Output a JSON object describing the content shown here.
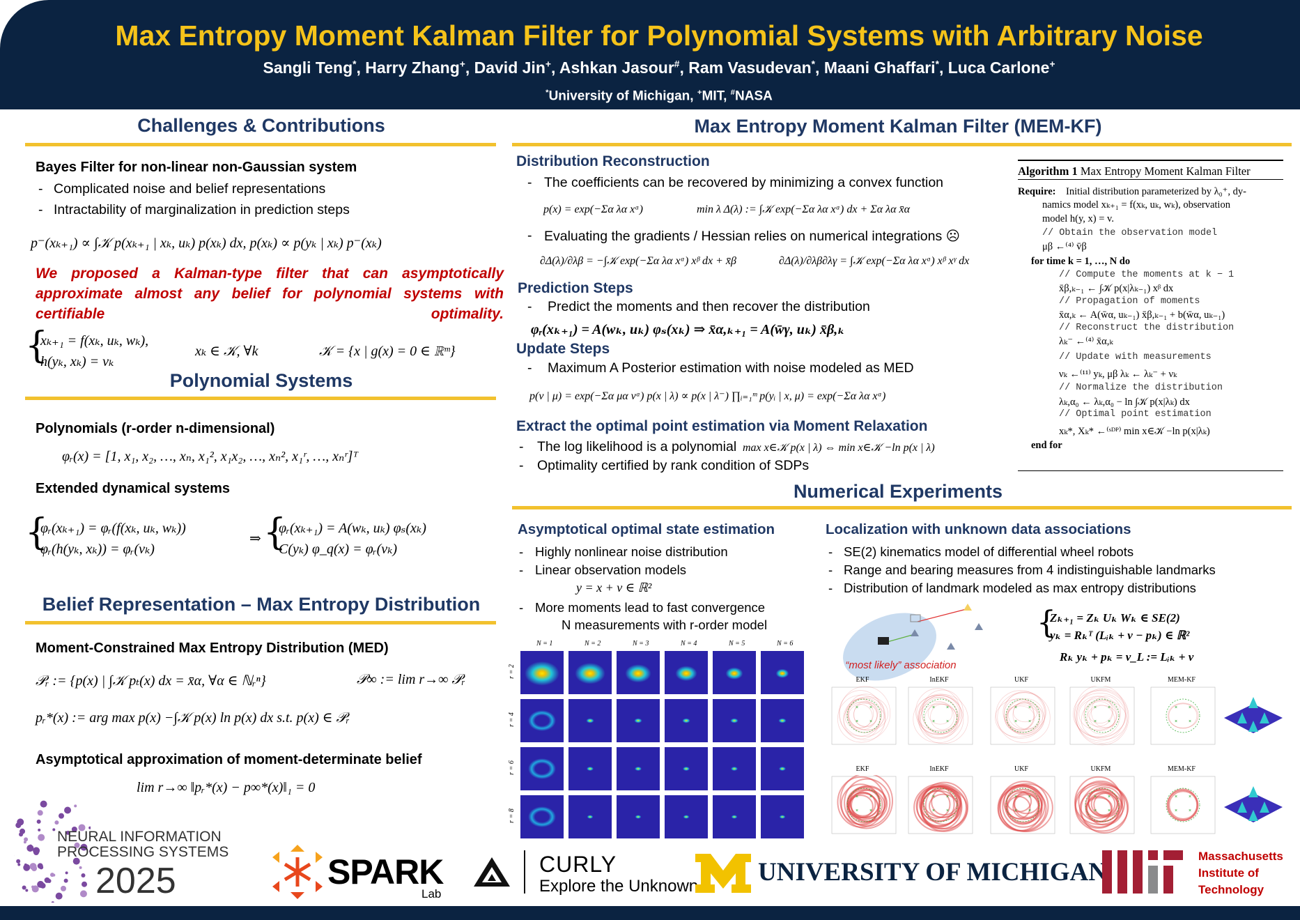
{
  "header": {
    "title": "Max Entropy Moment Kalman Filter for Polynomial Systems with Arbitrary Noise",
    "authors": [
      {
        "name": "Sangli Teng",
        "mark": "*"
      },
      {
        "name": ", Harry Zhang",
        "mark": "+"
      },
      {
        "name": ", David Jin",
        "mark": "+"
      },
      {
        "name": ", Ashkan Jasour",
        "mark": "#"
      },
      {
        "name": ", Ram Vasudevan",
        "mark": "*"
      },
      {
        "name": ", Maani Ghaffari",
        "mark": "*"
      },
      {
        "name": ", Luca Carlone",
        "mark": "+"
      }
    ],
    "affiliations": [
      {
        "mark": "*",
        "name": "University of Michigan, "
      },
      {
        "mark": "+",
        "name": "MIT, "
      },
      {
        "mark": "#",
        "name": "NASA"
      }
    ]
  },
  "challenges": {
    "heading": "Challenges & Contributions",
    "subheading": "Bayes Filter for non-linear non-Gaussian system",
    "bullets": [
      "Complicated noise and belief representations",
      "Intractability of marginalization in prediction steps"
    ],
    "equation": "p⁻(xₖ₊₁) ∝ ∫𝒦 p(xₖ₊₁ | xₖ, uₖ) p(xₖ) dx,      p(xₖ) ∝ p(yₖ | xₖ) p⁻(xₖ)",
    "highlight": "We proposed a Kalman-type filter that can asymptotically approximate almost any belief for polynomial systems with certifiable optimality.",
    "system": [
      "xₖ₊₁ = f(xₖ, uₖ, wₖ),",
      "h(yₖ, xₖ) = vₖ"
    ],
    "constraint": "xₖ ∈ 𝒦,    ∀k",
    "set": "𝒦 = {x | g(x) = 0 ∈ ℝᵐ}"
  },
  "polynomial": {
    "heading": "Polynomial Systems",
    "subheading": "Polynomials (r-order n-dimensional)",
    "equation": "φᵣ(x) = [1, x₁, x₂, …, xₙ, x₁², x₁x₂, …, xₙ², x₁ʳ, …, xₙʳ]ᵀ",
    "subheading2": "Extended dynamical systems",
    "system_left": [
      "φᵣ(xₖ₊₁) = φᵣ(f(xₖ, uₖ, wₖ))",
      "φᵣ(h(yₖ, xₖ)) = φᵣ(vₖ)"
    ],
    "implies": "⇒",
    "system_right": [
      "φᵣ(xₖ₊₁) = A(wₖ, uₖ) φₛ(xₖ)",
      "C(yₖ) φ_q(x) = φᵣ(vₖ)"
    ]
  },
  "belief": {
    "heading": "Belief Representation – Max Entropy Distribution",
    "subheading": "Moment-Constrained Max Entropy Distribution (MED)",
    "set_def": "𝒫ᵣ := {p(x) | ∫𝒦 pₜ(x) dx = x̄α, ∀α ∈ ℕᵣⁿ}",
    "limit_def": "𝒫∞ := lim r→∞ 𝒫ᵣ",
    "med_def": "pᵣ*(x) := arg max p(x)   −∫𝒦 p(x) ln p(x) dx     s.t.    p(x) ∈ 𝒫ᵣ",
    "subheading2": "Asymptotical approximation of moment-determinate belief",
    "convergence": "lim r→∞ ‖pᵣ*(x) − p∞*(x)‖₁ = 0"
  },
  "memkf": {
    "heading": "Max Entropy Moment Kalman Filter (MEM-KF)",
    "reconstruction": {
      "heading": "Distribution Reconstruction",
      "bullet1": "The coefficients can be recovered by minimizing a convex function",
      "eq1": "p(x) = exp(−Σα λα xᵅ)",
      "eq2": "min λ  Δ(λ) := ∫𝒦 exp(−Σα λα xᵅ) dx + Σα λα x̄α",
      "bullet2": "Evaluating the gradients / Hessian relies on numerical integrations ☹",
      "eq3": "∂Δ(λ)/∂λβ = −∫𝒦 exp(−Σα λα xᵅ) xᵝ dx + x̄β",
      "eq4": "∂Δ(λ)/∂λβ∂λγ = ∫𝒦 exp(−Σα λα xᵅ) xᵝ xᵞ dx"
    },
    "prediction": {
      "heading": "Prediction Steps",
      "bullet": "Predict the moments and then recover the distribution",
      "eq": "φᵣ(xₖ₊₁) = A(wₖ, uₖ) φₛ(xₖ) ⇒ x̄α,ₖ₊₁ = A(w̄γ, uₖ) x̄β,ₖ"
    },
    "update": {
      "heading": "Update Steps",
      "bullet": "Maximum A Posterior estimation with noise modeled as MED",
      "eq": "p(v | μ) = exp(−Σα μα vᵅ)    p(x | λ) ∝ p(x | λ⁻) ∏ᵢ₌₁ᵐ p(yᵢ | x, μ) = exp(−Σα λα xᵅ)"
    },
    "extract": {
      "heading": "Extract the optimal point estimation via Moment Relaxation",
      "bullet1": "The log likelihood is a polynomial",
      "eq": "max x∈𝒦 p(x | λ) ⇔ min x∈𝒦 −ln p(x | λ)",
      "bullet2": "Optimality certified by rank condition of SDPs"
    }
  },
  "algorithm": {
    "label": "Algorithm 1",
    "title": "Max Entropy Moment Kalman Filter",
    "require": "Require:",
    "lines": [
      "Initial distribution parameterized by λ₀⁺, dy-",
      "namics model xₖ₊₁ = f(xₖ, uₖ, wₖ), observation",
      "model h(y, x) = v.",
      "// Obtain the observation model",
      "μβ ←⁽⁴⁾ v̄β",
      "for time k = 1, …, N do",
      "// Compute the moments at k − 1",
      "x̄β,ₖ₋₁ ← ∫𝒦 p(x|λₖ₋₁) xᵝ dx",
      "// Propagation of moments",
      "x̄α,ₖ ← A(w̄α, uₖ₋₁) x̄β,ₖ₋₁ + b(w̄α, uₖ₋₁)",
      "// Reconstruct the distribution",
      "λₖ⁻ ←⁽⁴⁾ x̄α,ₖ",
      "// Update with measurements",
      "νₖ ←⁽¹¹⁾ yₖ, μβ     λₖ ← λₖ⁻ + νₖ",
      "// Normalize the distribution",
      "λₖ,α₀ ← λₖ,α₀ − ln ∫𝒦 p(x|λₖ) dx",
      "// Optimal point estimation",
      "xₖ*, Xₖ* ←⁽ˢᴰᴾ⁾ min x∈𝒦 −ln p(x|λₖ)",
      "end for"
    ]
  },
  "experiments": {
    "heading": "Numerical Experiments",
    "asymptotic": {
      "heading": "Asymptotical optimal state estimation",
      "bullets": [
        "Highly nonlinear noise distribution",
        "Linear observation models"
      ],
      "eq": "y = x + v ∈ ℝ²",
      "bullet3": "More moments lead to fast convergence",
      "continuation": "N measurements with r-order model",
      "columns": [
        "N = 1",
        "N = 2",
        "N = 3",
        "N = 4",
        "N = 5",
        "N = 6"
      ],
      "rows": [
        "r = 2",
        "r = 4",
        "r = 6",
        "r = 8"
      ]
    },
    "localization": {
      "heading": "Localization with unknown data associations",
      "bullets": [
        "SE(2) kinematics model of differential wheel robots",
        "Range and bearing measures from 4 indistinguishable landmarks",
        "Distribution of landmark modeled as max entropy distributions"
      ],
      "association": "“most likely” association",
      "system": [
        "Zₖ₊₁ = Zₖ Uₖ Wₖ ∈ SE(2)",
        "yₖ = Rₖᵀ (Lᵢₖ + v − pₖ) ∈ ℝ²"
      ],
      "eq": "Rₖ yₖ + pₖ = v_L := Lᵢₖ + v",
      "plots_top": [
        "EKF",
        "InEKF",
        "UKF",
        "UKFM",
        "MEM-KF"
      ],
      "plots_bottom": [
        "EKF",
        "InEKF",
        "UKF",
        "UKFM",
        "MEM-KF"
      ]
    }
  },
  "logos": {
    "neurips": [
      "NEURAL INFORMATION",
      "PROCESSING SYSTEMS",
      "2025"
    ],
    "spark": [
      "SPARK",
      "Lab"
    ],
    "curly": [
      "CURLY",
      "Explore the Unknown"
    ],
    "michigan": "UNIVERSITY OF MICHIGAN",
    "mit": [
      "Massachusetts",
      "Institute of",
      "Technology"
    ]
  }
}
